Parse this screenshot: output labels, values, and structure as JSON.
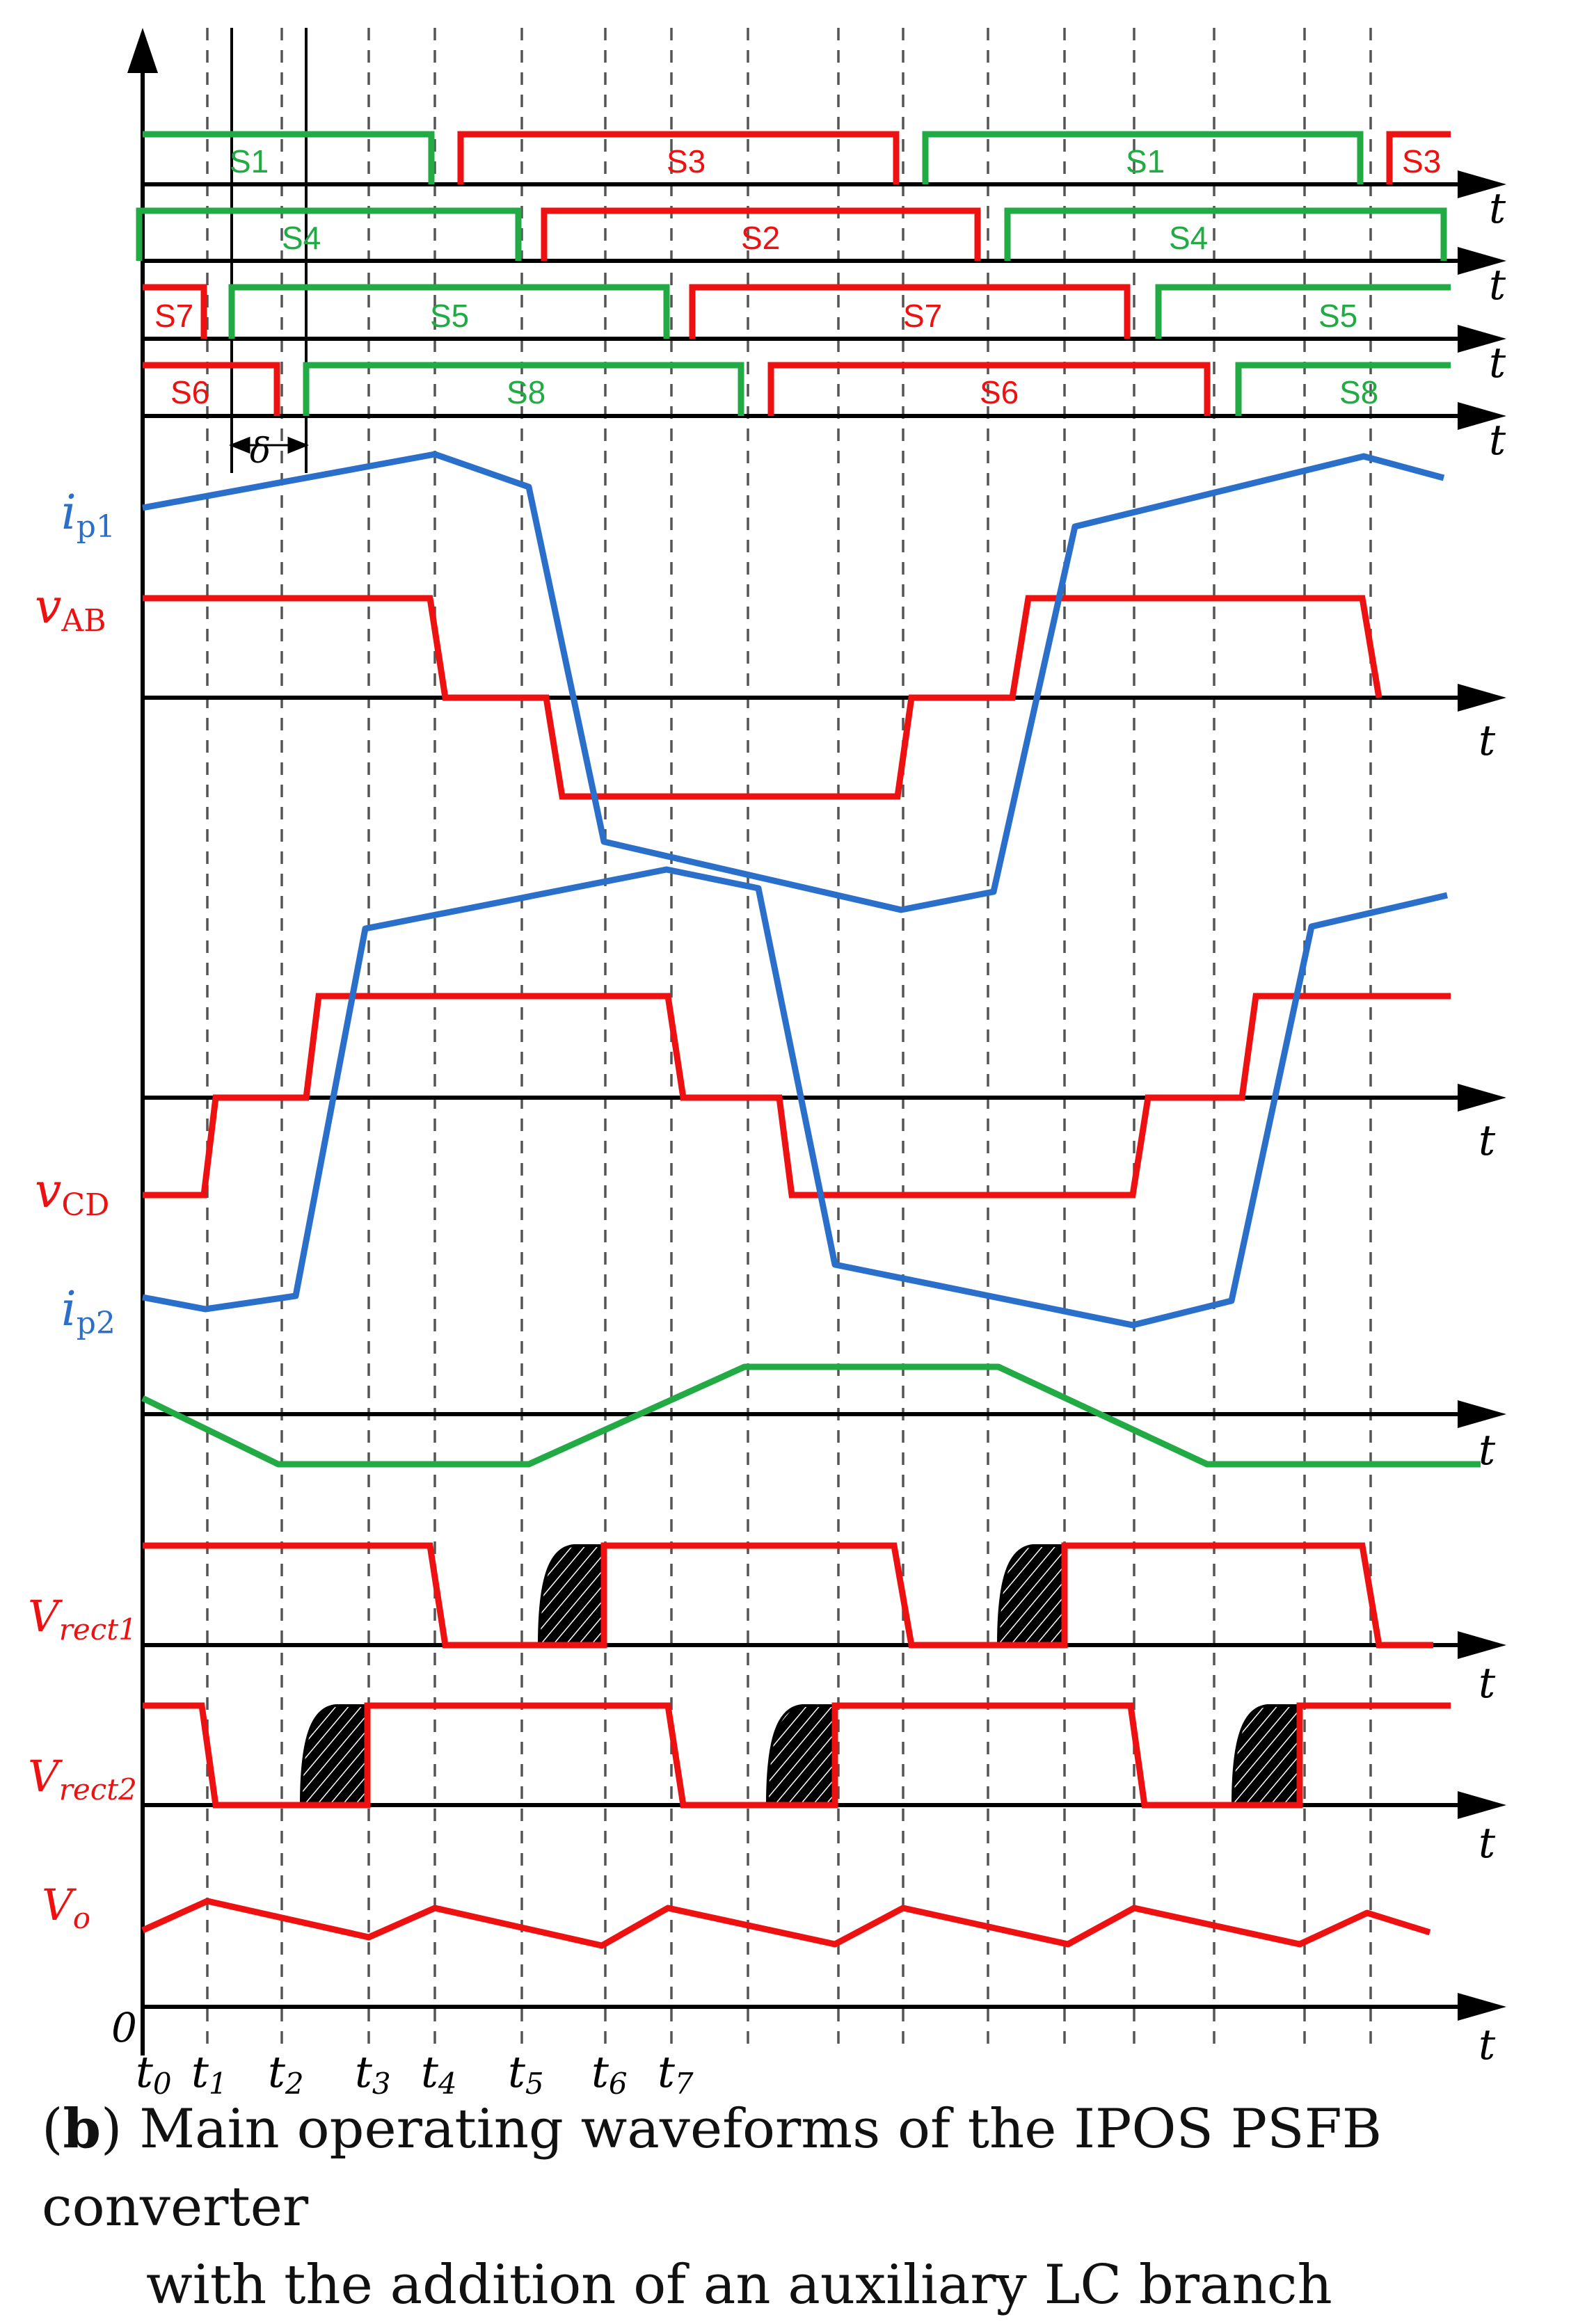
{
  "figure": {
    "axis_label": "t",
    "origin_label": "0",
    "delta_label": "δ",
    "time_labels": [
      "t0",
      "t1",
      "t2",
      "t3",
      "t4",
      "t5",
      "t6",
      "t7"
    ],
    "switch_labels": {
      "row1": [
        "S1",
        "S3",
        "S1",
        "S3"
      ],
      "row2": [
        "S4",
        "S2",
        "S4"
      ],
      "row3": [
        "S7",
        "S5",
        "S7",
        "S5"
      ],
      "row4": [
        "S6",
        "S8",
        "S6",
        "S8"
      ]
    },
    "waveform_labels": {
      "ip1": "ip1",
      "vAB": "vAB",
      "vCD": "vCD",
      "ip2": "ip2",
      "vrect1": "Vrect1",
      "vrect2": "Vrect2",
      "vo": "Vo"
    },
    "colors": {
      "green": "#22aa44",
      "red": "#ee1111",
      "blue": "#2a6fc9",
      "black": "#000000"
    }
  },
  "caption": {
    "tag": "b",
    "line1": "Main operating waveforms of the IPOS PSFB converter",
    "line2": "with the addition of an auxiliary LC branch"
  }
}
